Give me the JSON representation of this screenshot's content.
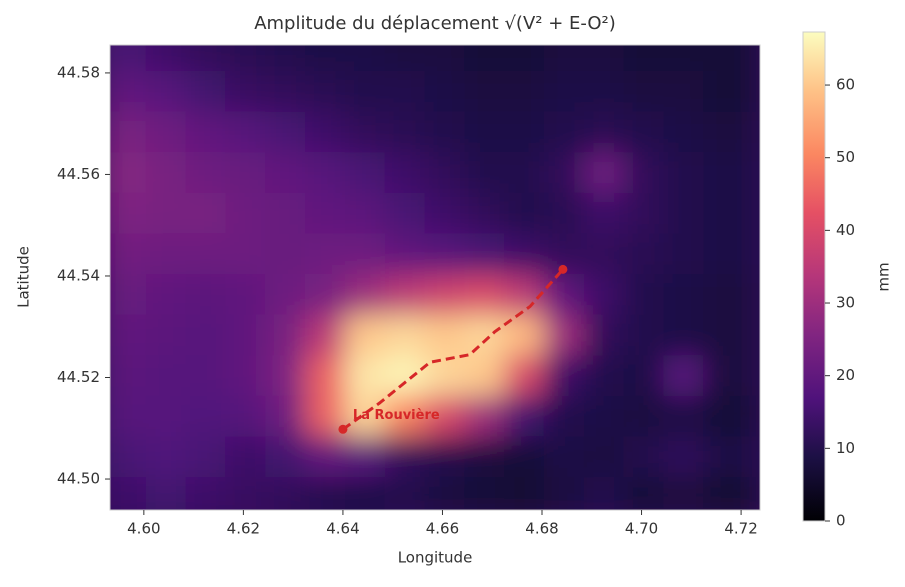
{
  "chart_data": {
    "type": "heatmap",
    "title": "Amplitude du déplacement √(V² + E-O²)",
    "x_label": "Longitude",
    "y_label": "Latitude",
    "colorbar_label": "mm",
    "colormap": "magma",
    "clim": [
      0,
      67.3
    ],
    "cticks": [
      0,
      10,
      20,
      30,
      40,
      50,
      60
    ],
    "xlim": [
      4.5932,
      4.7238
    ],
    "ylim": [
      44.4939,
      44.5855
    ],
    "xticks": [
      {
        "value": 4.6,
        "label": "4.60"
      },
      {
        "value": 4.62,
        "label": "4.62"
      },
      {
        "value": 4.64,
        "label": "4.64"
      },
      {
        "value": 4.66,
        "label": "4.66"
      },
      {
        "value": 4.68,
        "label": "4.68"
      },
      {
        "value": 4.7,
        "label": "4.70"
      },
      {
        "value": 4.72,
        "label": "4.72"
      }
    ],
    "yticks": [
      {
        "value": 44.5,
        "label": "44.50"
      },
      {
        "value": 44.52,
        "label": "44.52"
      },
      {
        "value": 44.54,
        "label": "44.54"
      },
      {
        "value": 44.56,
        "label": "44.56"
      },
      {
        "value": 44.58,
        "label": "44.58"
      }
    ],
    "x": [
      4.598,
      4.606,
      4.614,
      4.622,
      4.63,
      4.638,
      4.646,
      4.654,
      4.662,
      4.67,
      4.678,
      4.686,
      4.694,
      4.702,
      4.71,
      4.718
    ],
    "y": [
      44.498,
      44.506,
      44.514,
      44.522,
      44.53,
      44.538,
      44.546,
      44.554,
      44.562,
      44.57,
      44.578,
      44.586
    ],
    "z": [
      [
        14,
        15,
        14,
        13,
        12,
        10,
        9,
        10,
        8,
        7,
        6,
        8,
        10,
        7,
        8,
        6
      ],
      [
        16,
        17,
        16,
        14,
        15,
        20,
        18,
        12,
        10,
        8,
        7,
        9,
        8,
        10,
        12,
        9
      ],
      [
        18,
        18,
        17,
        18,
        22,
        45,
        62,
        50,
        40,
        30,
        15,
        10,
        9,
        8,
        9,
        7
      ],
      [
        19,
        18,
        18,
        20,
        25,
        45,
        64,
        66,
        62,
        60,
        40,
        14,
        10,
        9,
        18,
        8
      ],
      [
        20,
        19,
        18,
        20,
        24,
        35,
        60,
        62,
        60,
        62,
        58,
        30,
        12,
        10,
        9,
        8
      ],
      [
        21,
        20,
        19,
        20,
        22,
        24,
        30,
        35,
        38,
        40,
        35,
        20,
        14,
        10,
        9,
        8
      ],
      [
        23,
        22,
        22,
        22,
        21,
        22,
        22,
        20,
        18,
        16,
        14,
        12,
        12,
        11,
        10,
        9
      ],
      [
        25,
        24,
        24,
        22,
        21,
        20,
        19,
        16,
        14,
        12,
        10,
        11,
        14,
        12,
        10,
        9
      ],
      [
        26,
        24,
        22,
        21,
        20,
        18,
        16,
        14,
        12,
        10,
        10,
        12,
        22,
        12,
        10,
        9
      ],
      [
        24,
        22,
        20,
        18,
        16,
        14,
        12,
        11,
        10,
        9,
        9,
        10,
        11,
        10,
        9,
        8
      ],
      [
        20,
        18,
        15,
        13,
        12,
        11,
        10,
        10,
        9,
        8,
        8,
        9,
        9,
        8,
        8,
        7
      ],
      [
        16,
        14,
        12,
        11,
        10,
        9,
        9,
        8,
        8,
        7,
        7,
        8,
        8,
        7,
        7,
        7
      ]
    ],
    "track": {
      "name": "La Rouvière",
      "color": "#d62728",
      "x": [
        4.64,
        4.6474,
        4.6575,
        4.6655,
        4.6705,
        4.6776,
        4.6842
      ],
      "y": [
        44.5098,
        44.515,
        44.523,
        44.5245,
        44.529,
        44.534,
        44.5413
      ]
    }
  }
}
